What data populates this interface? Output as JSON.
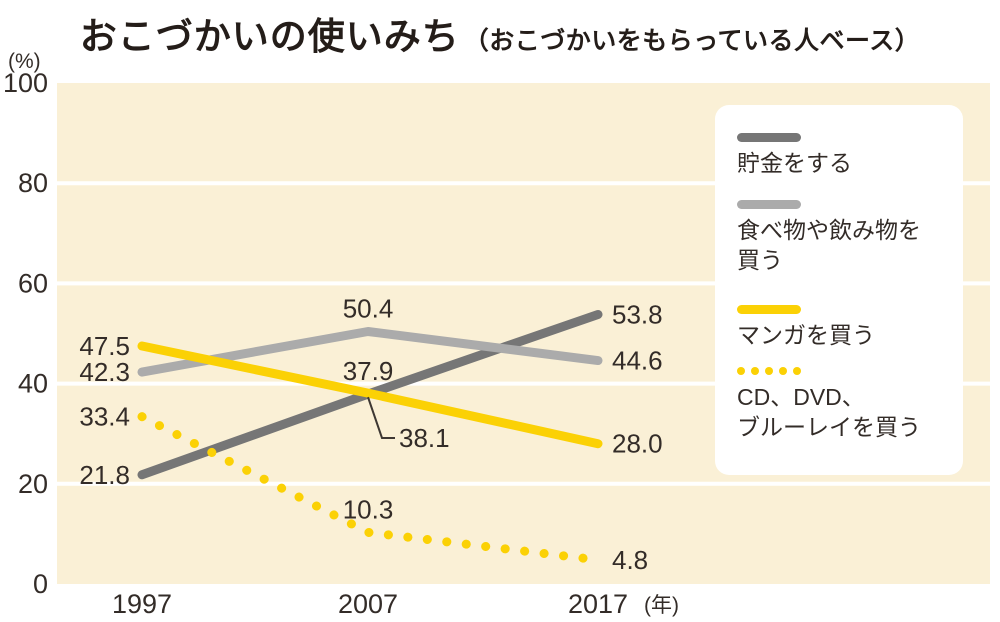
{
  "title": {
    "main": "おこづかいの使いみち",
    "subtitle": "（おこづかいをもらっている人ベース）"
  },
  "colors": {
    "plot_bg": "#FAF0D6",
    "grid": "#FFFFFF",
    "dark_gray": "#767676",
    "light_gray": "#ABABAB",
    "yellow": "#FBD105",
    "text": "#332C28",
    "title": "#241D19",
    "leader": "#3E3833",
    "legend_bg": "#FFFFFF"
  },
  "axes": {
    "y_unit": "(%)",
    "y_ticks": [
      100,
      80,
      60,
      40,
      20,
      0
    ],
    "x_unit": "(年)"
  },
  "chart_data": {
    "type": "line",
    "title": "おこづかいの使いみち（おこづかいをもらっている人ベース）",
    "categories": [
      "1997",
      "2007",
      "2017"
    ],
    "ylim": [
      0,
      100
    ],
    "ylabel": "(%)",
    "xlabel_suffix": "(年)",
    "grid": "horizontal white lines every 20 on cream background",
    "legend_position": "right overlay box",
    "series": [
      {
        "name": "貯金をする",
        "values": [
          21.8,
          37.9,
          53.8
        ],
        "color_key": "dark_gray",
        "style": "solid",
        "mid_label": "above"
      },
      {
        "name": "食べ物や飲み物を買う",
        "values": [
          42.3,
          50.4,
          44.6
        ],
        "color_key": "light_gray",
        "style": "solid",
        "mid_label": "above"
      },
      {
        "name": "マンガを買う",
        "values": [
          47.5,
          38.1,
          28.0
        ],
        "color_key": "yellow",
        "style": "solid",
        "mid_label": "leader"
      },
      {
        "name": "CD、DVD、ブルーレイを買う",
        "values": [
          33.4,
          10.3,
          4.8
        ],
        "color_key": "yellow",
        "style": "dotted",
        "mid_label": "above"
      }
    ]
  },
  "legend": {
    "items": [
      {
        "swatch": "solid-dark-gray",
        "lines": [
          "貯金をする"
        ]
      },
      {
        "swatch": "solid-light-gray",
        "lines": [
          "食べ物や飲み物を",
          "買う"
        ]
      },
      {
        "swatch": "solid-yellow",
        "lines": [
          "マンガを買う"
        ]
      },
      {
        "swatch": "dotted-yellow",
        "lines": [
          "CD、DVD、",
          "ブルーレイを買う"
        ]
      }
    ]
  }
}
